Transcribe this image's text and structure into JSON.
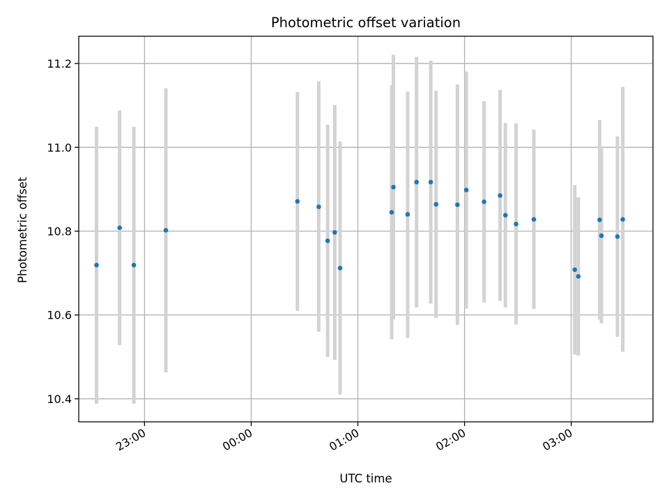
{
  "chart_data": {
    "type": "scatter",
    "title": "Photometric offset variation",
    "xlabel": "UTC time",
    "ylabel": "Photometric offset",
    "x_ticks": [
      "23:00",
      "00:00",
      "01:00",
      "02:00",
      "03:00"
    ],
    "y_ticks": [
      "10.4",
      "10.6",
      "10.8",
      "11.0",
      "11.2"
    ],
    "y_tick_values": [
      10.4,
      10.6,
      10.8,
      11.0,
      11.2
    ],
    "ylim": [
      10.345,
      11.265
    ],
    "xlim": [
      "22:23:00",
      "03:46:00"
    ],
    "grid": true,
    "marker_color": "#1f77b4",
    "errorbar_color": "#d3d3d3",
    "points": [
      {
        "t": "22:33",
        "y": 10.719,
        "lo": 10.388,
        "hi": 11.049
      },
      {
        "t": "22:46",
        "y": 10.808,
        "lo": 10.528,
        "hi": 11.088
      },
      {
        "t": "22:54",
        "y": 10.719,
        "lo": 10.388,
        "hi": 11.049
      },
      {
        "t": "23:12",
        "y": 10.802,
        "lo": 10.463,
        "hi": 11.141
      },
      {
        "t": "00:26",
        "y": 10.871,
        "lo": 10.61,
        "hi": 11.132
      },
      {
        "t": "00:38",
        "y": 10.858,
        "lo": 10.56,
        "hi": 11.157
      },
      {
        "t": "00:43",
        "y": 10.777,
        "lo": 10.5,
        "hi": 11.054
      },
      {
        "t": "00:47",
        "y": 10.797,
        "lo": 10.493,
        "hi": 11.101
      },
      {
        "t": "00:50",
        "y": 10.712,
        "lo": 10.41,
        "hi": 11.014
      },
      {
        "t": "01:19",
        "y": 10.845,
        "lo": 10.542,
        "hi": 11.148
      },
      {
        "t": "01:20",
        "y": 10.905,
        "lo": 10.589,
        "hi": 11.221
      },
      {
        "t": "01:28",
        "y": 10.84,
        "lo": 10.545,
        "hi": 11.133
      },
      {
        "t": "01:33",
        "y": 10.917,
        "lo": 10.618,
        "hi": 11.216
      },
      {
        "t": "01:41",
        "y": 10.917,
        "lo": 10.627,
        "hi": 11.207
      },
      {
        "t": "01:44",
        "y": 10.864,
        "lo": 10.593,
        "hi": 11.135
      },
      {
        "t": "01:56",
        "y": 10.863,
        "lo": 10.576,
        "hi": 11.15
      },
      {
        "t": "02:01",
        "y": 10.898,
        "lo": 10.615,
        "hi": 11.181
      },
      {
        "t": "02:11",
        "y": 10.87,
        "lo": 10.63,
        "hi": 11.11
      },
      {
        "t": "02:20",
        "y": 10.885,
        "lo": 10.633,
        "hi": 11.137
      },
      {
        "t": "02:23",
        "y": 10.838,
        "lo": 10.618,
        "hi": 11.058
      },
      {
        "t": "02:29",
        "y": 10.817,
        "lo": 10.577,
        "hi": 11.057
      },
      {
        "t": "02:39",
        "y": 10.828,
        "lo": 10.614,
        "hi": 11.042
      },
      {
        "t": "03:02",
        "y": 10.708,
        "lo": 10.506,
        "hi": 10.91
      },
      {
        "t": "03:04",
        "y": 10.692,
        "lo": 10.503,
        "hi": 10.881
      },
      {
        "t": "03:16",
        "y": 10.827,
        "lo": 10.589,
        "hi": 11.065
      },
      {
        "t": "03:17",
        "y": 10.789,
        "lo": 10.58,
        "hi": 10.998
      },
      {
        "t": "03:26",
        "y": 10.787,
        "lo": 10.548,
        "hi": 11.026
      },
      {
        "t": "03:29",
        "y": 10.828,
        "lo": 10.512,
        "hi": 11.144
      }
    ]
  }
}
